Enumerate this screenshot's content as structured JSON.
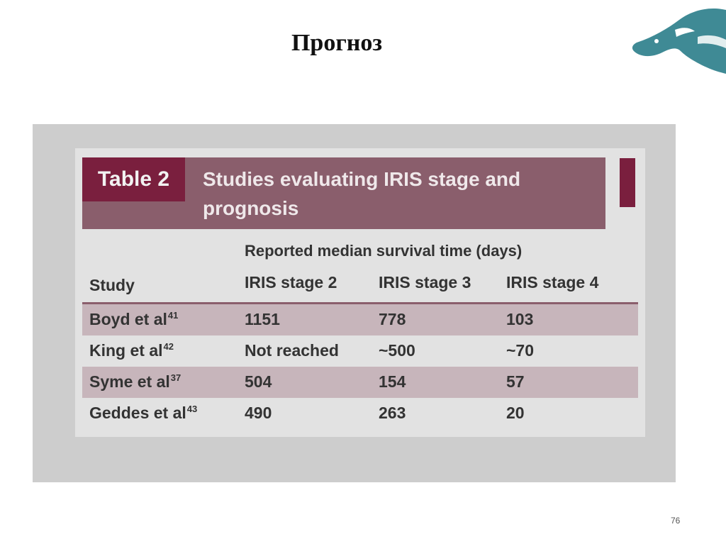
{
  "slide": {
    "title": "Прогноз",
    "page_number": "76"
  },
  "table": {
    "label": "Table 2",
    "heading": "Studies evaluating IRIS stage and prognosis",
    "group_header": "Reported median survival time (days)",
    "columns": [
      "Study",
      "IRIS stage 2",
      "IRIS stage 3",
      "IRIS stage 4"
    ],
    "rows": [
      {
        "study": "Boyd et al",
        "ref": "41",
        "stage2": "1151",
        "stage3": "778",
        "stage4": "103"
      },
      {
        "study": "King et al",
        "ref": "42",
        "stage2": "Not reached",
        "stage3": "~500",
        "stage4": "~70"
      },
      {
        "study": "Syme et al",
        "ref": "37",
        "stage2": "504",
        "stage3": "154",
        "stage4": "57"
      },
      {
        "study": "Geddes et al",
        "ref": "43",
        "stage2": "490",
        "stage3": "263",
        "stage4": "20"
      }
    ]
  },
  "colors": {
    "accent": "#7a1f3e",
    "header_band": "#8a5e6c",
    "row_shade": "#c7b5bb",
    "logo": "#3f8a95"
  },
  "icons": {
    "logo": "horse-head-logo"
  }
}
